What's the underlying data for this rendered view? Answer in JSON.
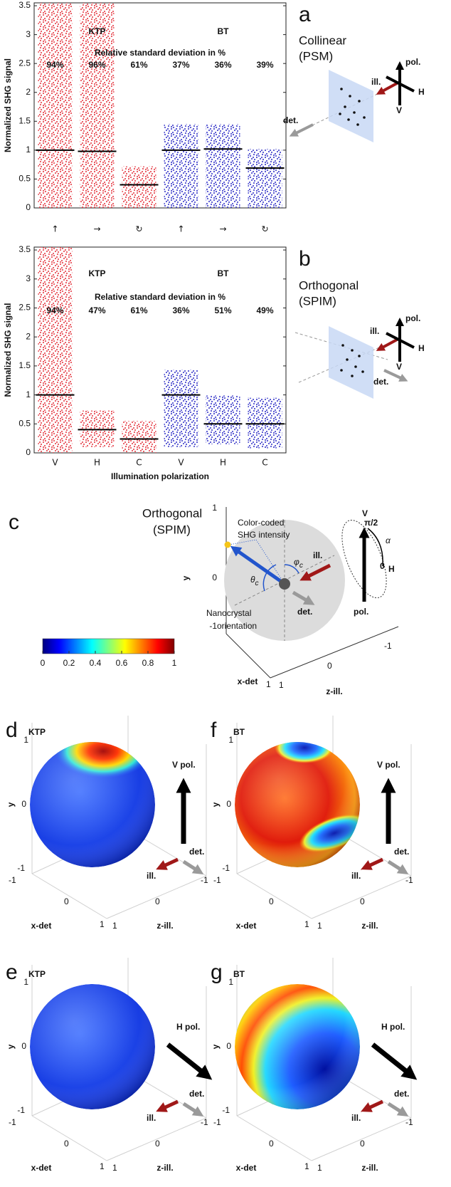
{
  "chart_data": [
    {
      "type": "strip",
      "panel_label": "a",
      "side_title": [
        "Collinear",
        "(PSM)"
      ],
      "ylabel": "Normalized SHG signal",
      "categories": [
        "↑",
        "→",
        "↻",
        "↑",
        "→",
        "↻"
      ],
      "series": [
        {
          "name": "KTP",
          "color": "#e8525a",
          "values": [
            1.0,
            0.98,
            0.4,
            null,
            null,
            null
          ],
          "ranges": [
            [
              0,
              3.55
            ],
            [
              0,
              3.55
            ],
            [
              0,
              0.72
            ],
            null,
            null,
            null
          ]
        },
        {
          "name": "BT",
          "color": "#4f4fcf",
          "values": [
            null,
            null,
            null,
            1.0,
            1.02,
            0.69
          ],
          "ranges": [
            null,
            null,
            null,
            [
              0,
              1.45
            ],
            [
              0,
              1.45
            ],
            [
              0,
              1.02
            ]
          ]
        }
      ],
      "annotation": "Relative standard deviation in %",
      "rsd_labels": [
        "94%",
        "96%",
        "61%",
        "37%",
        "36%",
        "39%"
      ],
      "ylim": [
        0,
        3.55
      ],
      "yticks": [
        0,
        0.5,
        1,
        1.5,
        2,
        2.5,
        3,
        3.5
      ]
    },
    {
      "type": "strip",
      "panel_label": "b",
      "side_title": [
        "Orthogonal",
        "(SPIM)"
      ],
      "ylabel": "Normalized SHG signal",
      "categories": [
        "V",
        "H",
        "C",
        "V",
        "H",
        "C"
      ],
      "xlabel": "Illumination polarization",
      "series": [
        {
          "name": "KTP",
          "color": "#e8525a",
          "values": [
            1.0,
            0.4,
            0.24,
            null,
            null,
            null
          ],
          "ranges": [
            [
              0,
              3.55
            ],
            [
              0.1,
              0.73
            ],
            [
              0,
              0.55
            ],
            null,
            null,
            null
          ]
        },
        {
          "name": "BT",
          "color": "#4f4fcf",
          "values": [
            null,
            null,
            null,
            1.0,
            0.5,
            0.5
          ],
          "ranges": [
            null,
            null,
            null,
            [
              0.1,
              1.43
            ],
            [
              0.15,
              0.99
            ],
            [
              0.08,
              0.95
            ]
          ]
        }
      ],
      "annotation": "Relative standard deviation in %",
      "rsd_labels": [
        "94%",
        "47%",
        "61%",
        "36%",
        "51%",
        "49%"
      ],
      "ylim": [
        0,
        3.55
      ],
      "yticks": [
        0,
        0.5,
        1,
        1.5,
        2,
        2.5,
        3,
        3.5
      ]
    }
  ],
  "diagram_labels": {
    "pol": "pol.",
    "ill": "ill.",
    "det": "det.",
    "h": "H",
    "v": "V"
  },
  "panel_c": {
    "label": "c",
    "title": [
      "Orthogonal",
      "(SPIM)"
    ],
    "intensity": [
      "Color-coded",
      "SHG intensity"
    ],
    "orientation": [
      "Nanocrystal",
      "orientation"
    ],
    "theta": "θ",
    "phi": "φ",
    "sub": "c",
    "alpha": "α",
    "half_pi": "π/2",
    "alpha_zero": 0
  },
  "colorbar": {
    "ticks": [
      0,
      0.2,
      0.4,
      0.6,
      0.8,
      1
    ]
  },
  "sphere_axes": {
    "y_label": "y",
    "x_label": "x-det",
    "z_label": "z-ill.",
    "yticks": [
      1,
      0,
      -1
    ],
    "xticks": [
      -1,
      0,
      1
    ],
    "zticks": [
      1,
      0,
      -1
    ]
  },
  "sphere_panels": [
    {
      "label": "d",
      "material": "KTP",
      "color": "#e8525a",
      "pol": "V pol."
    },
    {
      "label": "f",
      "material": "BT",
      "color": "#4f4fcf",
      "pol": "V pol."
    },
    {
      "label": "e",
      "material": "KTP",
      "color": "#e8525a",
      "pol": "H pol."
    },
    {
      "label": "g",
      "material": "BT",
      "color": "#4f4fcf",
      "pol": "H pol."
    }
  ]
}
